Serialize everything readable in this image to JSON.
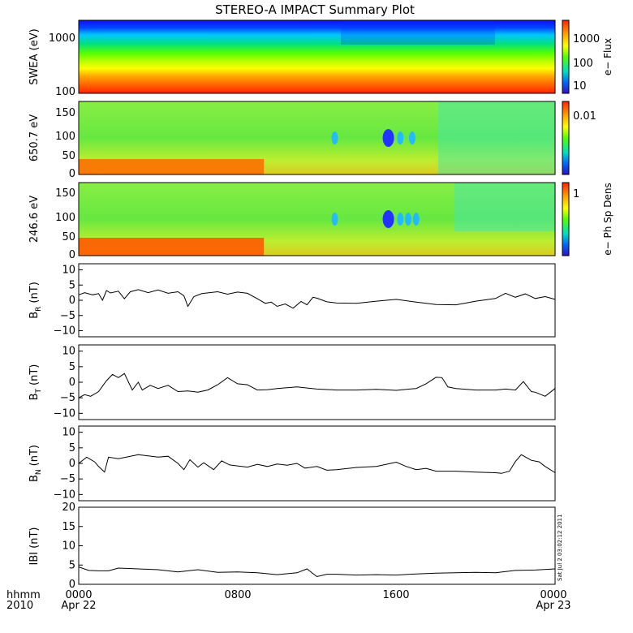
{
  "title": "STEREO-A IMPACT Summary Plot",
  "colors": {
    "swea": [
      "#ff2200",
      "#ff6600",
      "#ffaa00",
      "#ffff00",
      "#c8ff00",
      "#55ff00",
      "#00e080",
      "#00c8ff",
      "#0066ff",
      "#1010ff"
    ],
    "pad_bg": "#66ee44",
    "pad_low": "#ff5a00",
    "pad_spot": "#2233ff"
  },
  "chart_data": [
    {
      "type": "heatmap",
      "ylabel": "SWEA (eV)",
      "yscale": "log",
      "ylim": [
        100,
        2000
      ],
      "yticks": [
        "1000",
        "100"
      ],
      "colorbar": {
        "label": "e− Flux",
        "ticks": [
          "1000",
          "100",
          "10"
        ]
      }
    },
    {
      "type": "heatmap",
      "ylabel": "650.7 eV",
      "ylim": [
        0,
        180
      ],
      "yticks": [
        "150",
        "100",
        "50",
        "0"
      ],
      "colorbar": {
        "label": "e− Ph Sp Dens",
        "ticks": [
          "0.01"
        ]
      },
      "spots_hours": [
        12.9,
        15.6,
        16.2,
        16.8
      ]
    },
    {
      "type": "heatmap",
      "ylabel": "246.6 eV",
      "ylim": [
        0,
        180
      ],
      "yticks": [
        "150",
        "100",
        "50",
        "0"
      ],
      "colorbar": {
        "label": "e− Ph Sp Dens",
        "ticks": [
          "1"
        ]
      },
      "spots_hours": [
        12.9,
        15.6,
        16.2,
        16.6,
        17.0
      ]
    },
    {
      "type": "line",
      "ylabel": "B",
      "ysub": "R",
      "yunit": "(nT)",
      "ylim": [
        -12,
        12
      ],
      "yticks": [
        "10",
        "5",
        "0",
        "−5",
        "−10"
      ],
      "x": [
        0,
        0.3,
        0.7,
        1,
        1.2,
        1.4,
        1.6,
        2,
        2.3,
        2.6,
        3,
        3.5,
        4,
        4.5,
        5,
        5.3,
        5.5,
        5.8,
        6.2,
        7,
        7.5,
        8,
        8.5,
        9,
        9.4,
        9.7,
        10,
        10.4,
        10.8,
        11.2,
        11.5,
        11.8,
        12,
        12.5,
        13,
        14,
        15,
        16,
        17,
        18,
        19,
        19.6,
        20,
        21,
        21.5,
        22,
        22.5,
        23,
        23.5,
        24
      ],
      "values": [
        1.8,
        2.5,
        1.8,
        2.2,
        0,
        3.2,
        2.4,
        3.0,
        0.5,
        2.8,
        3.5,
        2.5,
        3.4,
        2.3,
        2.8,
        1.5,
        -2,
        1.2,
        2.2,
        2.8,
        2.0,
        2.7,
        2.3,
        0.5,
        -1.0,
        -0.6,
        -2.0,
        -1.2,
        -2.6,
        -0.4,
        -1.5,
        1.0,
        0.7,
        -0.5,
        -0.9,
        -1.0,
        -0.3,
        0.3,
        -0.6,
        -1.4,
        -1.5,
        -0.8,
        -0.3,
        0.6,
        2.3,
        1.0,
        2.1,
        0.6,
        1.2,
        0.3
      ]
    },
    {
      "type": "line",
      "ylabel": "B",
      "ysub": "T",
      "yunit": "(nT)",
      "ylim": [
        -12,
        12
      ],
      "yticks": [
        "10",
        "5",
        "0",
        "−5",
        "−10"
      ],
      "x": [
        0,
        0.3,
        0.6,
        1,
        1.4,
        1.7,
        2,
        2.3,
        2.7,
        3,
        3.2,
        3.6,
        4,
        4.5,
        5,
        5.5,
        6,
        6.5,
        7,
        7.5,
        8,
        8.5,
        9,
        9.5,
        10,
        11,
        12,
        13,
        14,
        15,
        16,
        17,
        17.5,
        18,
        18.3,
        18.6,
        19,
        20,
        21,
        21.5,
        22,
        22.4,
        22.8,
        23,
        23.5,
        24
      ],
      "values": [
        -5,
        -4,
        -4.5,
        -3,
        0.5,
        2.5,
        1.5,
        2.8,
        -2.5,
        0,
        -2.5,
        -1.0,
        -2,
        -1,
        -3,
        -2.8,
        -3.2,
        -2.5,
        -0.8,
        1.5,
        -0.5,
        -0.8,
        -2.5,
        -2.4,
        -2.0,
        -1.5,
        -2.2,
        -2.5,
        -2.5,
        -2.3,
        -2.6,
        -2.0,
        -0.5,
        1.6,
        1.5,
        -1.5,
        -2.0,
        -2.5,
        -2.5,
        -2.2,
        -2.5,
        0.2,
        -3.0,
        -3.2,
        -4.5,
        -2.0
      ]
    },
    {
      "type": "line",
      "ylabel": "B",
      "ysub": "N",
      "yunit": "(nT)",
      "ylim": [
        -12,
        12
      ],
      "yticks": [
        "10",
        "5",
        "0",
        "−5",
        "−10"
      ],
      "x": [
        0,
        0.4,
        0.8,
        1,
        1.3,
        1.5,
        2,
        3,
        4,
        4.5,
        5,
        5.3,
        5.6,
        6,
        6.3,
        6.8,
        7.2,
        7.6,
        8,
        8.5,
        9,
        9.5,
        10,
        10.5,
        11,
        11.4,
        12,
        12.5,
        13,
        14,
        15,
        15.5,
        16,
        16.5,
        17,
        17.5,
        18,
        19,
        20,
        21,
        21.3,
        21.7,
        22,
        22.3,
        22.8,
        23.2,
        23.5,
        24
      ],
      "values": [
        0,
        2,
        0.5,
        -1,
        -2.8,
        2,
        1.5,
        2.8,
        2,
        2.3,
        0,
        -2,
        1.2,
        -1.2,
        0.2,
        -2,
        0.8,
        -0.5,
        -0.8,
        -1.2,
        -0.3,
        -1.0,
        -0.2,
        -0.6,
        0,
        -1.5,
        -1.0,
        -2.2,
        -2.0,
        -1.3,
        -1.0,
        -0.3,
        0.4,
        -1.0,
        -2.0,
        -1.6,
        -2.5,
        -2.5,
        -2.8,
        -3.0,
        -3.2,
        -2.5,
        0.6,
        2.8,
        1.0,
        0.5,
        -1.0,
        -3.0
      ]
    },
    {
      "type": "line",
      "ylabel": "IBI",
      "yunit": "(nT)",
      "ylim": [
        0,
        20
      ],
      "yticks": [
        "20",
        "15",
        "10",
        "5",
        "0"
      ],
      "x": [
        0,
        0.5,
        1,
        1.5,
        2,
        3,
        4,
        5,
        6,
        7,
        8,
        9,
        10,
        11,
        11.5,
        12,
        12.5,
        13,
        14,
        15,
        16,
        17,
        18,
        19,
        20,
        21,
        22,
        23,
        24
      ],
      "values": [
        4.5,
        3.6,
        3.5,
        3.5,
        4.2,
        4.0,
        3.8,
        3.2,
        3.8,
        3.1,
        3.2,
        3.0,
        2.5,
        3.0,
        4.0,
        2.0,
        2.6,
        2.6,
        2.4,
        2.5,
        2.4,
        2.7,
        2.9,
        3.0,
        3.1,
        3.0,
        3.6,
        3.7,
        4.0
      ]
    }
  ],
  "xaxis": {
    "row1_label": "hhmm",
    "row2_label": "2010",
    "ticks": [
      "0000",
      "0800",
      "1600",
      "0000"
    ],
    "dates": [
      "Apr 22",
      "Apr 23"
    ]
  },
  "timestamp": "Sat Jul 2 03:02:12 2011"
}
